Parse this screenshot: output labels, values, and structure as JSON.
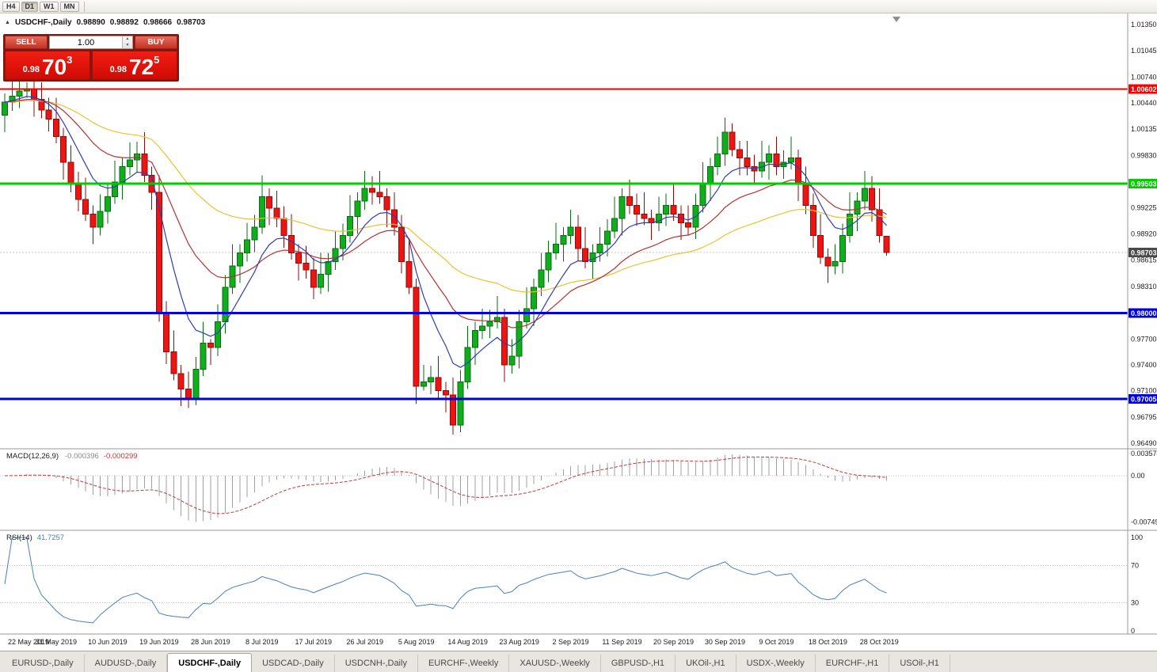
{
  "toolbar": {
    "timeframes": [
      {
        "label": "H4",
        "active": false
      },
      {
        "label": "D1",
        "active": true
      },
      {
        "label": "W1",
        "active": false
      },
      {
        "label": "MN",
        "active": false
      }
    ]
  },
  "icons": {
    "one_click_collapse": "▲",
    "spin_up": "▲",
    "spin_down": "▼"
  },
  "one_click": {
    "sell_label": "SELL",
    "buy_label": "BUY",
    "volume": "1.00",
    "sell_price": {
      "prefix": "0.98",
      "big": "70",
      "sup": "3"
    },
    "buy_price": {
      "prefix": "0.98",
      "big": "72",
      "sup": "5"
    },
    "accent": "#d21414"
  },
  "chart_data": {
    "type": "candlestick",
    "symbol": "USDCHF-",
    "timeframe": "Daily",
    "title": "USDCHF-,Daily",
    "ohlc_text": {
      "open": "0.98890",
      "high": "0.98892",
      "low": "0.98666",
      "close": "0.98703"
    },
    "ohlc_current": {
      "open": 0.9889,
      "high": 0.98892,
      "low": 0.98666,
      "close": 0.98703
    },
    "up_color": "#10ad1c",
    "up_edge": "#076d10",
    "down_color": "#ee1414",
    "down_edge": "#8e0d08",
    "y_axis": {
      "range": [
        0.9649,
        1.0135
      ],
      "visible_labels": [
        "1.01350",
        "1.01045",
        "1.00740",
        "1.00440",
        "1.00135",
        "0.99830",
        "0.99225",
        "0.98920",
        "0.98615",
        "0.98310",
        "0.97700",
        "0.97400",
        "0.97100",
        "0.96795",
        "0.96490"
      ]
    },
    "x_axis": {
      "candles_per_label": 7,
      "date_labels": [
        "22 May 2019",
        "31 May 2019",
        "10 Jun 2019",
        "19 Jun 2019",
        "28 Jun 2019",
        "8 Jul 2019",
        "17 Jul 2019",
        "26 Jul 2019",
        "5 Aug 2019",
        "14 Aug 2019",
        "23 Aug 2019",
        "2 Sep 2019",
        "11 Sep 2019",
        "20 Sep 2019",
        "30 Sep 2019",
        "9 Oct 2019",
        "18 Oct 2019",
        "28 Oct 2019"
      ]
    },
    "levels": [
      {
        "price": 1.00602,
        "label": "1.00602",
        "color": "#f80000",
        "width": 2
      },
      {
        "price": 0.99503,
        "label": "0.99503",
        "color": "#00cc00",
        "width": 3
      },
      {
        "price": 0.98,
        "label": "0.98000",
        "color": "#0000e6",
        "width": 3
      },
      {
        "price": 0.97005,
        "label": "0.97005",
        "color": "#0000e6",
        "width": 3
      }
    ],
    "current_price_tag": {
      "label": "0.98703",
      "price": 0.98703,
      "color": "#4a4a4a"
    },
    "moving_averages": [
      {
        "period": 45,
        "color": "#e7c430"
      },
      {
        "period": 20,
        "color": "#b43232"
      },
      {
        "period": 8,
        "color": "#2e3db4"
      }
    ],
    "candles": [
      [
        1.003,
        1.0055,
        1.001,
        1.0045
      ],
      [
        1.0045,
        1.0072,
        1.0035,
        1.0052
      ],
      [
        1.0052,
        1.0072,
        1.0038,
        1.0058
      ],
      [
        1.0058,
        1.0068,
        1.005,
        1.006
      ],
      [
        1.006,
        1.007,
        1.0028,
        1.0048
      ],
      [
        1.0048,
        1.0068,
        1.0026,
        1.0036
      ],
      [
        1.0036,
        1.005,
        1.0011,
        1.0025
      ],
      [
        1.0025,
        1.005,
        0.9997,
        1.0005
      ],
      [
        1.0005,
        1.0015,
        0.9955,
        0.9975
      ],
      [
        0.9975,
        0.9995,
        0.994,
        0.995
      ],
      [
        0.995,
        0.9964,
        0.9918,
        0.9932
      ],
      [
        0.9932,
        0.9957,
        0.9907,
        0.9915
      ],
      [
        0.9915,
        0.9925,
        0.988,
        0.99
      ],
      [
        0.99,
        0.9938,
        0.989,
        0.9918
      ],
      [
        0.9918,
        0.9949,
        0.9904,
        0.9935
      ],
      [
        0.9935,
        0.9977,
        0.9927,
        0.9952
      ],
      [
        0.9952,
        0.998,
        0.9932,
        0.997
      ],
      [
        0.997,
        0.9998,
        0.996,
        0.9978
      ],
      [
        0.9978,
        0.9999,
        0.9964,
        0.9985
      ],
      [
        0.9985,
        1.001,
        0.9952,
        0.996
      ],
      [
        0.996,
        0.997,
        0.992,
        0.994
      ],
      [
        0.994,
        0.996,
        0.979,
        0.98
      ],
      [
        0.98,
        0.9814,
        0.9741,
        0.9755
      ],
      [
        0.9755,
        0.978,
        0.9722,
        0.973
      ],
      [
        0.973,
        0.974,
        0.9692,
        0.9712
      ],
      [
        0.9712,
        0.9732,
        0.969,
        0.97
      ],
      [
        0.97,
        0.9749,
        0.9693,
        0.9735
      ],
      [
        0.9735,
        0.979,
        0.9727,
        0.9765
      ],
      [
        0.9765,
        0.977,
        0.974,
        0.976
      ],
      [
        0.976,
        0.981,
        0.975,
        0.979
      ],
      [
        0.979,
        0.9844,
        0.9776,
        0.983
      ],
      [
        0.983,
        0.988,
        0.9822,
        0.9855
      ],
      [
        0.9855,
        0.988,
        0.9835,
        0.987
      ],
      [
        0.987,
        0.9905,
        0.986,
        0.9885
      ],
      [
        0.9885,
        0.9914,
        0.9871,
        0.99
      ],
      [
        0.99,
        0.996,
        0.9892,
        0.9935
      ],
      [
        0.9935,
        0.9945,
        0.9902,
        0.9922
      ],
      [
        0.9922,
        0.9942,
        0.99,
        0.991
      ],
      [
        0.991,
        0.9924,
        0.9876,
        0.989
      ],
      [
        0.989,
        0.9915,
        0.9862,
        0.987
      ],
      [
        0.987,
        0.988,
        0.9838,
        0.9858
      ],
      [
        0.9858,
        0.9878,
        0.984,
        0.985
      ],
      [
        0.985,
        0.9864,
        0.9816,
        0.983
      ],
      [
        0.983,
        0.987,
        0.9822,
        0.9845
      ],
      [
        0.9845,
        0.987,
        0.9825,
        0.986
      ],
      [
        0.986,
        0.9895,
        0.985,
        0.9875
      ],
      [
        0.9875,
        0.9904,
        0.9861,
        0.989
      ],
      [
        0.989,
        0.9937,
        0.9882,
        0.9912
      ],
      [
        0.9912,
        0.994,
        0.9892,
        0.993
      ],
      [
        0.993,
        0.9965,
        0.992,
        0.9945
      ],
      [
        0.9945,
        0.9959,
        0.9926,
        0.994
      ],
      [
        0.994,
        0.9965,
        0.9927,
        0.9935
      ],
      [
        0.9935,
        0.9945,
        0.99,
        0.992
      ],
      [
        0.992,
        0.994,
        0.989,
        0.99
      ],
      [
        0.99,
        0.9914,
        0.9846,
        0.986
      ],
      [
        0.986,
        0.9885,
        0.9822,
        0.983
      ],
      [
        0.983,
        0.984,
        0.9695,
        0.9715
      ],
      [
        0.9715,
        0.974,
        0.971,
        0.972
      ],
      [
        0.972,
        0.9739,
        0.9706,
        0.9725
      ],
      [
        0.9725,
        0.975,
        0.9702,
        0.971
      ],
      [
        0.971,
        0.972,
        0.9685,
        0.9705
      ],
      [
        0.9705,
        0.9725,
        0.9659,
        0.967
      ],
      [
        0.967,
        0.9734,
        0.9662,
        0.972
      ],
      [
        0.972,
        0.9785,
        0.9712,
        0.976
      ],
      [
        0.976,
        0.979,
        0.974,
        0.978
      ],
      [
        0.978,
        0.9805,
        0.977,
        0.9785
      ],
      [
        0.9785,
        0.9804,
        0.9771,
        0.979
      ],
      [
        0.979,
        0.982,
        0.9782,
        0.9795
      ],
      [
        0.9795,
        0.9805,
        0.972,
        0.974
      ],
      [
        0.974,
        0.977,
        0.973,
        0.975
      ],
      [
        0.975,
        0.9804,
        0.9736,
        0.979
      ],
      [
        0.979,
        0.983,
        0.9782,
        0.9805
      ],
      [
        0.9805,
        0.984,
        0.9785,
        0.983
      ],
      [
        0.983,
        0.987,
        0.982,
        0.985
      ],
      [
        0.985,
        0.9884,
        0.9836,
        0.987
      ],
      [
        0.987,
        0.9905,
        0.9862,
        0.988
      ],
      [
        0.988,
        0.99,
        0.986,
        0.989
      ],
      [
        0.989,
        0.992,
        0.988,
        0.99
      ],
      [
        0.99,
        0.9914,
        0.9861,
        0.9875
      ],
      [
        0.9875,
        0.99,
        0.9852,
        0.986
      ],
      [
        0.986,
        0.988,
        0.984,
        0.987
      ],
      [
        0.987,
        0.99,
        0.986,
        0.988
      ],
      [
        0.988,
        0.9909,
        0.9866,
        0.9895
      ],
      [
        0.9895,
        0.9935,
        0.9887,
        0.991
      ],
      [
        0.991,
        0.9945,
        0.989,
        0.9935
      ],
      [
        0.9935,
        0.9955,
        0.9915,
        0.9925
      ],
      [
        0.9925,
        0.9939,
        0.9901,
        0.9915
      ],
      [
        0.9915,
        0.994,
        0.9902,
        0.991
      ],
      [
        0.991,
        0.992,
        0.9885,
        0.9905
      ],
      [
        0.9905,
        0.9935,
        0.9895,
        0.9915
      ],
      [
        0.9915,
        0.9939,
        0.9901,
        0.9925
      ],
      [
        0.9925,
        0.995,
        0.9907,
        0.9915
      ],
      [
        0.9915,
        0.9925,
        0.9885,
        0.9905
      ],
      [
        0.9905,
        0.9925,
        0.989,
        0.99
      ],
      [
        0.99,
        0.9939,
        0.9886,
        0.9925
      ],
      [
        0.9925,
        0.9975,
        0.9917,
        0.995
      ],
      [
        0.995,
        0.998,
        0.993,
        0.997
      ],
      [
        0.997,
        1.0005,
        0.996,
        0.9985
      ],
      [
        0.9985,
        1.0027,
        0.9971,
        1.001
      ],
      [
        1.001,
        1.002,
        0.9982,
        0.999
      ],
      [
        0.999,
        1.0,
        0.996,
        0.998
      ],
      [
        0.998,
        1.0,
        0.996,
        0.997
      ],
      [
        0.997,
        0.9984,
        0.9951,
        0.9965
      ],
      [
        0.9965,
        1.0,
        0.9957,
        0.9975
      ],
      [
        0.9975,
        0.9995,
        0.9955,
        0.9985
      ],
      [
        0.9985,
        1.0005,
        0.996,
        0.997
      ],
      [
        0.997,
        0.9989,
        0.9956,
        0.9975
      ],
      [
        0.9975,
        1.0005,
        0.9967,
        0.998
      ],
      [
        0.998,
        0.999,
        0.993,
        0.995
      ],
      [
        0.995,
        0.997,
        0.9915,
        0.9925
      ],
      [
        0.9925,
        0.9939,
        0.9876,
        0.989
      ],
      [
        0.989,
        0.9915,
        0.9857,
        0.9865
      ],
      [
        0.9865,
        0.9875,
        0.9835,
        0.9855
      ],
      [
        0.9855,
        0.988,
        0.9845,
        0.986
      ],
      [
        0.986,
        0.9904,
        0.9846,
        0.989
      ],
      [
        0.989,
        0.994,
        0.9882,
        0.9915
      ],
      [
        0.9915,
        0.994,
        0.9895,
        0.993
      ],
      [
        0.993,
        0.9965,
        0.992,
        0.9945
      ],
      [
        0.9945,
        0.9959,
        0.9906,
        0.992
      ],
      [
        0.992,
        0.9945,
        0.9882,
        0.989
      ],
      [
        0.9889,
        0.98892,
        0.98666,
        0.98703
      ]
    ]
  },
  "indicators": {
    "macd": {
      "name": "MACD(12,26,9)",
      "value_macd": "-0.000396",
      "value_signal": "-0.000299",
      "histogram_color": "#a0a0a0",
      "signal_color": "#c23b3b",
      "axis": [
        {
          "text": "0.003574",
          "value": 0.003574
        },
        {
          "text": "0.00",
          "value": 0
        },
        {
          "text": "-0.00749",
          "value": -0.00749
        }
      ]
    },
    "rsi": {
      "name": "RSI(14)",
      "value": "41.7257",
      "period": 14,
      "color": "#4a7fbe",
      "levels": [
        70,
        30
      ],
      "axis": [
        {
          "text": "100",
          "value": 100
        },
        {
          "text": "70",
          "value": 70
        },
        {
          "text": "30",
          "value": 30
        },
        {
          "text": "0",
          "value": 0
        }
      ]
    }
  },
  "tabs": [
    {
      "label": "EURUSD-,Daily",
      "active": false
    },
    {
      "label": "AUDUSD-,Daily",
      "active": false
    },
    {
      "label": "USDCHF-,Daily",
      "active": true
    },
    {
      "label": "USDCAD-,Daily",
      "active": false
    },
    {
      "label": "USDCNH-,Daily",
      "active": false
    },
    {
      "label": "EURCHF-,Weekly",
      "active": false
    },
    {
      "label": "XAUUSD-,Weekly",
      "active": false
    },
    {
      "label": "GBPUSD-,H1",
      "active": false
    },
    {
      "label": "UKOil-,H1",
      "active": false
    },
    {
      "label": "USDX-,Weekly",
      "active": false
    },
    {
      "label": "EURCHF-,H1",
      "active": false
    },
    {
      "label": "USOil-,H1",
      "active": false
    }
  ]
}
